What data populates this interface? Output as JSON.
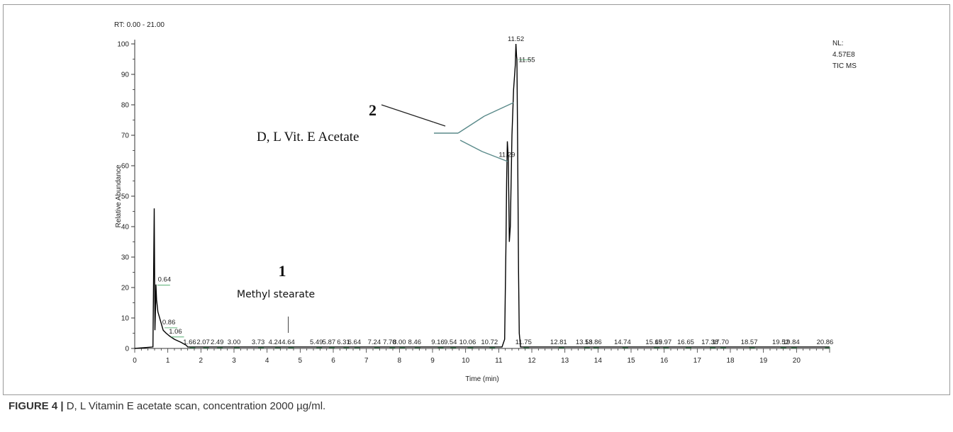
{
  "caption": {
    "label": "FIGURE 4 |",
    "text": " D, L Vitamin E acetate scan, concentration 2000 µg/ml."
  },
  "header": {
    "rt_range": "RT: 0.00 - 21.00",
    "right_info": [
      "NL:",
      "4.57E8",
      "TIC MS"
    ]
  },
  "chart_data": {
    "type": "line",
    "title": "",
    "xlabel": "Time (min)",
    "ylabel": "Relative Abundance",
    "xlim": [
      0,
      21
    ],
    "ylim": [
      0,
      100
    ],
    "x_ticks": [
      0,
      1,
      2,
      3,
      4,
      5,
      6,
      7,
      8,
      9,
      10,
      11,
      12,
      13,
      14,
      15,
      16,
      17,
      18,
      19,
      20
    ],
    "y_ticks": [
      0,
      10,
      20,
      30,
      40,
      50,
      60,
      70,
      80,
      90,
      100
    ],
    "series": [
      {
        "points": [
          [
            0.0,
            0
          ],
          [
            0.55,
            0.5
          ],
          [
            0.59,
            46
          ],
          [
            0.61,
            6
          ],
          [
            0.63,
            14
          ],
          [
            0.64,
            21
          ],
          [
            0.66,
            16
          ],
          [
            0.7,
            12
          ],
          [
            0.78,
            9
          ],
          [
            0.86,
            6
          ],
          [
            0.95,
            5
          ],
          [
            1.06,
            4
          ],
          [
            1.2,
            3
          ],
          [
            1.4,
            2
          ],
          [
            1.56,
            1
          ],
          [
            1.6,
            0.5
          ],
          [
            2.0,
            0.5
          ],
          [
            4.0,
            0.5
          ],
          [
            6.0,
            0.5
          ],
          [
            8.0,
            0.5
          ],
          [
            10.0,
            0.5
          ],
          [
            11.1,
            0.5
          ],
          [
            11.18,
            3
          ],
          [
            11.22,
            35
          ],
          [
            11.24,
            55
          ],
          [
            11.26,
            68
          ],
          [
            11.29,
            62
          ],
          [
            11.32,
            35
          ],
          [
            11.35,
            40
          ],
          [
            11.4,
            70
          ],
          [
            11.45,
            85
          ],
          [
            11.5,
            93
          ],
          [
            11.52,
            100
          ],
          [
            11.54,
            96
          ],
          [
            11.55,
            95
          ],
          [
            11.57,
            70
          ],
          [
            11.6,
            25
          ],
          [
            11.62,
            5
          ],
          [
            11.66,
            0.5
          ],
          [
            13.0,
            0.5
          ],
          [
            16.0,
            0.5
          ],
          [
            21.0,
            0.5
          ]
        ]
      }
    ],
    "peak_labels": [
      {
        "x": 0.64,
        "y": 21,
        "label": "0.64"
      },
      {
        "x": 0.86,
        "y": 7,
        "label": "0.86"
      },
      {
        "x": 1.06,
        "y": 4,
        "label": "1.06"
      },
      {
        "x": 1.66,
        "y": 0,
        "label": "1.66"
      },
      {
        "x": 2.07,
        "y": 0,
        "label": "2.07"
      },
      {
        "x": 2.49,
        "y": 0,
        "label": "2.49"
      },
      {
        "x": 3.0,
        "y": 0,
        "label": "3.00"
      },
      {
        "x": 3.73,
        "y": 0,
        "label": "3.73"
      },
      {
        "x": 4.24,
        "y": 0,
        "label": "4.24"
      },
      {
        "x": 4.64,
        "y": 0,
        "label": "4.64"
      },
      {
        "x": 5.49,
        "y": 0,
        "label": "5.49"
      },
      {
        "x": 5.87,
        "y": 0,
        "label": "5.87"
      },
      {
        "x": 6.31,
        "y": 0,
        "label": "6.31"
      },
      {
        "x": 6.64,
        "y": 0,
        "label": "6.64"
      },
      {
        "x": 7.24,
        "y": 0,
        "label": "7.24"
      },
      {
        "x": 7.7,
        "y": 0,
        "label": "7.70"
      },
      {
        "x": 8.0,
        "y": 0,
        "label": "8.00"
      },
      {
        "x": 8.46,
        "y": 0,
        "label": "8.46"
      },
      {
        "x": 9.16,
        "y": 0,
        "label": "9.16"
      },
      {
        "x": 9.54,
        "y": 0,
        "label": "9.54"
      },
      {
        "x": 10.06,
        "y": 0,
        "label": "10.06"
      },
      {
        "x": 10.72,
        "y": 0,
        "label": "10.72"
      },
      {
        "x": 11.29,
        "y": 62,
        "label": "11.29"
      },
      {
        "x": 11.52,
        "y": 100,
        "label": "11.52"
      },
      {
        "x": 11.55,
        "y": 95,
        "label": "11.55"
      },
      {
        "x": 11.75,
        "y": 0,
        "label": "11.75"
      },
      {
        "x": 12.81,
        "y": 0,
        "label": "12.81"
      },
      {
        "x": 13.58,
        "y": 0,
        "label": "13.58"
      },
      {
        "x": 13.86,
        "y": 0,
        "label": "13.86"
      },
      {
        "x": 14.74,
        "y": 0,
        "label": "14.74"
      },
      {
        "x": 15.69,
        "y": 0,
        "label": "15.69"
      },
      {
        "x": 15.97,
        "y": 0,
        "label": "15.97"
      },
      {
        "x": 16.65,
        "y": 0,
        "label": "16.65"
      },
      {
        "x": 17.38,
        "y": 0,
        "label": "17.38"
      },
      {
        "x": 17.7,
        "y": 0,
        "label": "17.70"
      },
      {
        "x": 18.57,
        "y": 0,
        "label": "18.57"
      },
      {
        "x": 19.52,
        "y": 0,
        "label": "19.52"
      },
      {
        "x": 19.84,
        "y": 0,
        "label": "19.84"
      },
      {
        "x": 20.86,
        "y": 0,
        "label": "20.86"
      }
    ],
    "annotations": [
      {
        "number": "1",
        "text": "Methyl stearate",
        "x": 4.64
      },
      {
        "number": "2",
        "text": "D, L Vit. E Acetate",
        "targets": [
          11.29,
          11.52
        ]
      }
    ],
    "colors": {
      "trace": "#000000",
      "axis": "#333333",
      "annotation_line": "#5a8a8a",
      "peak_mark": "#3aa05a"
    }
  }
}
